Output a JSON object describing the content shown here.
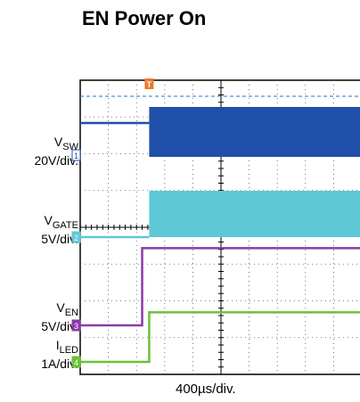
{
  "title": "EN Power On",
  "chart_data": {
    "type": "line",
    "title": "EN Power On",
    "xlabel": "400µs/div.",
    "x_divisions": 10,
    "y_divisions": 8,
    "trigger_marker": "T",
    "trigger_div": 2.45,
    "channels": [
      {
        "id": "1",
        "name_main": "V",
        "name_sub": "SW",
        "scale": "20V/div.",
        "color": "#1f4fa8",
        "waveform": "switching",
        "before": "0 V",
        "after": "switching"
      },
      {
        "id": "2",
        "name_main": "V",
        "name_sub": "GATE",
        "scale": "5V/div.",
        "color": "#5ec8d6",
        "waveform": "switching",
        "before": "0 V",
        "after": "switching"
      },
      {
        "id": "3",
        "name_main": "V",
        "name_sub": "EN",
        "scale": "5V/div.",
        "color": "#8b3aa8",
        "waveform": "step",
        "step_div": 2.2,
        "step_height_div": 2.1
      },
      {
        "id": "4",
        "name_main": "I",
        "name_sub": "LED",
        "scale": "1A/div.",
        "color": "#6cc03a",
        "waveform": "step",
        "step_div": 2.45,
        "step_height_div": 1.35
      }
    ]
  }
}
